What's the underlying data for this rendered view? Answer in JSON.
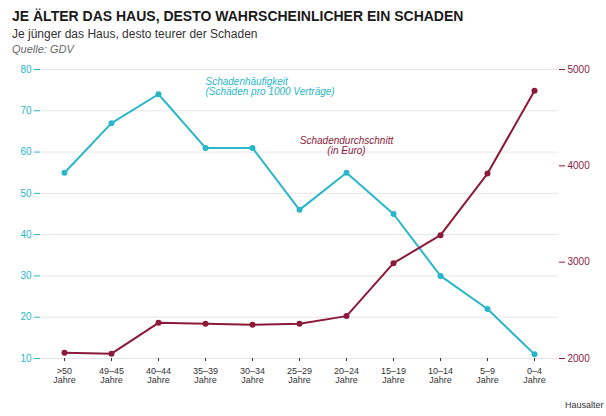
{
  "chart_data": {
    "type": "line",
    "title": "JE ÄLTER DAS HAUS, DESTO WAHRSCHEINLICHER EIN SCHADEN",
    "subtitle": "Je jünger das Haus, desto teurer der Schaden",
    "source": "Quelle: GDV",
    "xlabel": "Hausalter",
    "categories": [
      ">50\nJahre",
      "49–45\nJahre",
      "40–44\nJahre",
      "35–39\nJahre",
      "30–34\nJahre",
      "25–29\nJahre",
      "20–24\nJahre",
      "15–19\nJahre",
      "10–14\nJahre",
      "5–9\nJahre",
      "0–4\nJahre"
    ],
    "series": [
      {
        "name": "Schadenhäufigkeit\n(Schäden pro 1000 Verträge)",
        "color": "#29b6c8",
        "marker": "circle",
        "axis": "y",
        "values": [
          55,
          67,
          74,
          61,
          61,
          46,
          55,
          45,
          30,
          22,
          11
        ]
      },
      {
        "name": "Schadendurchschnitt\n(in Euro)",
        "color": "#8b1a3a",
        "marker": "circle",
        "axis": "y2",
        "values": [
          2060,
          2050,
          2370,
          2360,
          2350,
          2360,
          2440,
          2990,
          3280,
          3920,
          4780
        ]
      }
    ],
    "ylim": [
      10,
      80
    ],
    "yticks": [
      10,
      20,
      30,
      40,
      50,
      60,
      70,
      80
    ],
    "y2lim": [
      2000,
      5000
    ],
    "y2ticks": [
      2000,
      3000,
      4000,
      5000
    ],
    "grid": true
  }
}
